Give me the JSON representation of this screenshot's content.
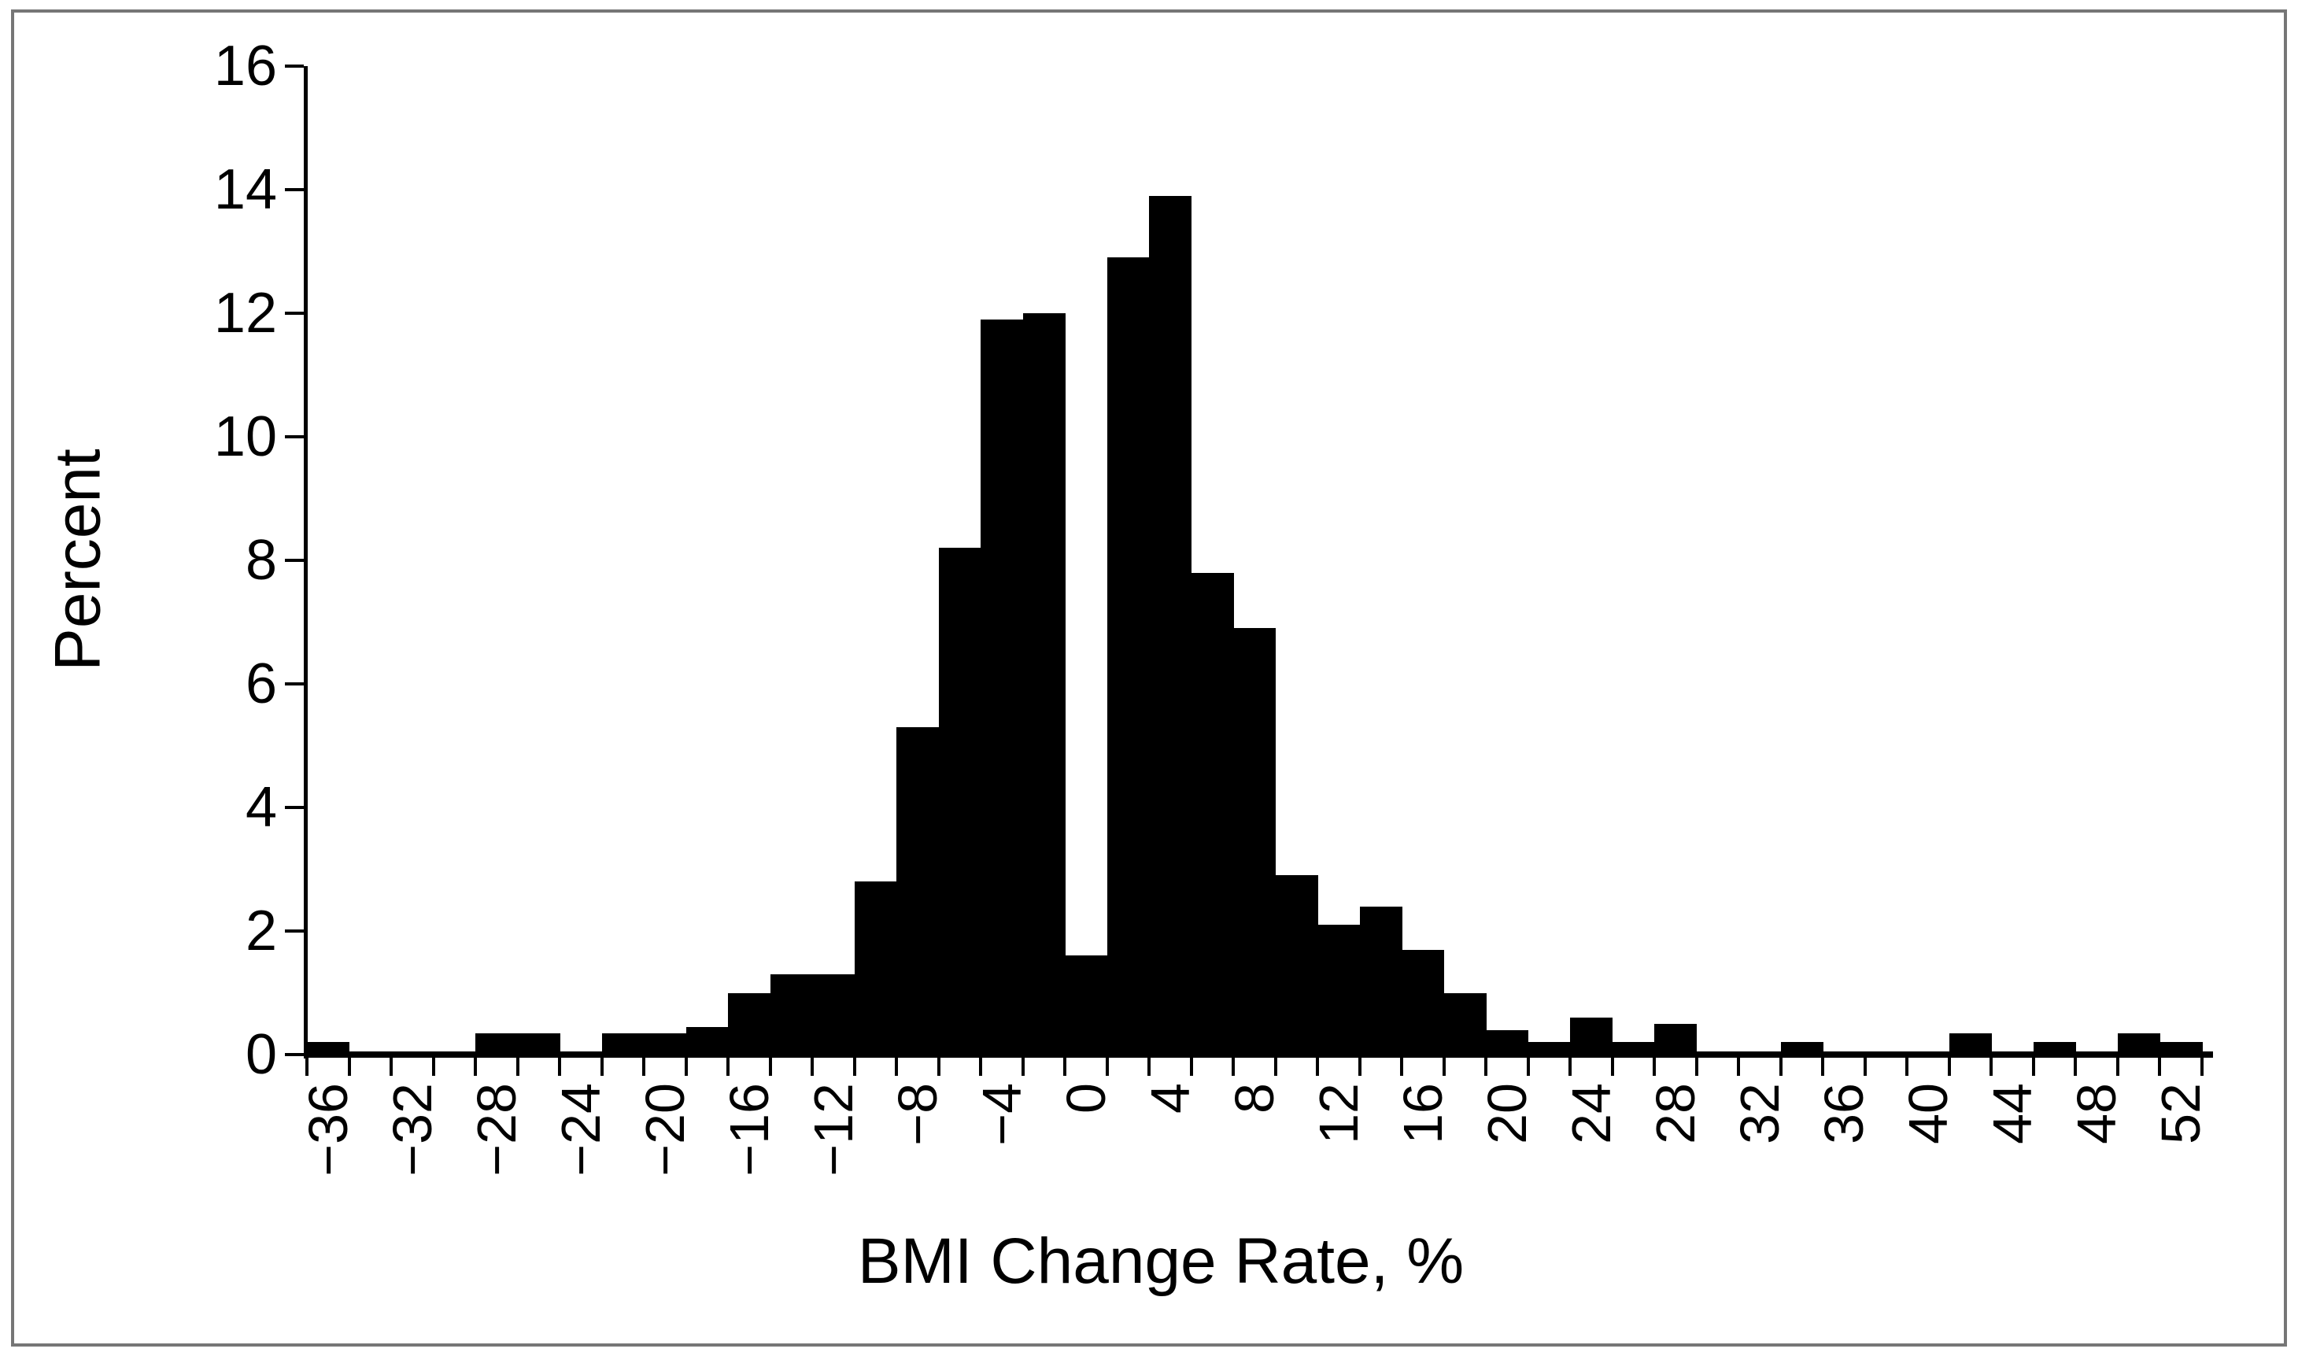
{
  "figure": {
    "background_color": "#ffffff",
    "border_color": "#767676",
    "bar_color": "#000000",
    "text_color": "#000000"
  },
  "chart_data": {
    "type": "bar",
    "subtype": "histogram",
    "title": "",
    "xlabel": "BMI Change Rate, %",
    "ylabel": "Percent",
    "bin_width": 2,
    "categories": [
      -36,
      -34,
      -32,
      -30,
      -28,
      -26,
      -24,
      -22,
      -20,
      -18,
      -16,
      -14,
      -12,
      -10,
      -8,
      -6,
      -4,
      -2,
      0,
      2,
      4,
      6,
      8,
      10,
      12,
      14,
      16,
      18,
      20,
      22,
      24,
      26,
      28,
      30,
      32,
      34,
      36,
      38,
      40,
      42,
      44,
      46,
      48,
      50,
      52
    ],
    "values": [
      0.2,
      0,
      0,
      0,
      0.35,
      0.35,
      0,
      0.35,
      0.35,
      0.45,
      1.0,
      1.3,
      1.3,
      2.8,
      5.3,
      8.2,
      11.9,
      12.0,
      1.6,
      12.9,
      13.9,
      7.8,
      6.9,
      2.9,
      2.1,
      2.4,
      1.7,
      1.0,
      0.4,
      0.2,
      0.6,
      0.2,
      0.5,
      0,
      0,
      0.2,
      0,
      0,
      0,
      0.35,
      0,
      0.2,
      0,
      0.35,
      0.2
    ],
    "x_tick_labels": [
      "−36",
      "−32",
      "−28",
      "−24",
      "−20",
      "−16",
      "−12",
      "−8",
      "−4",
      "0",
      "4",
      "8",
      "12",
      "16",
      "20",
      "24",
      "28",
      "32",
      "36",
      "40",
      "44",
      "48",
      "52"
    ],
    "x_label_interval": 4,
    "y_tick_labels": [
      "0",
      "2",
      "4",
      "6",
      "8",
      "10",
      "12",
      "14",
      "16"
    ],
    "ylim": [
      0,
      16
    ],
    "y_tick_step": 2,
    "grid": false,
    "legend": null,
    "bar_gap": 0
  }
}
